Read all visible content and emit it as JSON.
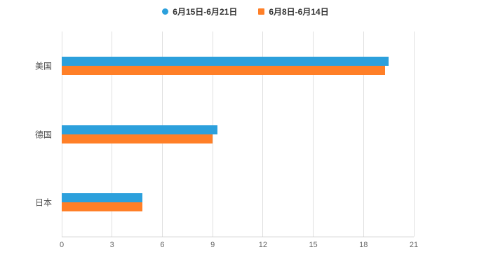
{
  "background": "#ffffff",
  "legend": {
    "items": [
      {
        "label": "6月15日-6月21日",
        "color": "#2CA0DC",
        "marker": "circle"
      },
      {
        "label": "6月8日-6月14日",
        "color": "#FF7F27",
        "marker": "square"
      }
    ]
  },
  "chart_data": {
    "type": "bar",
    "orientation": "horizontal",
    "title": "",
    "xlabel": "",
    "ylabel": "",
    "categories": [
      "美国",
      "德国",
      "日本"
    ],
    "series": [
      {
        "name": "6月15日-6月21日",
        "color": "#2CA0DC",
        "values": [
          19.5,
          9.3,
          4.8
        ]
      },
      {
        "name": "6月8日-6月14日",
        "color": "#FF7F27",
        "values": [
          19.3,
          9.0,
          4.8
        ]
      }
    ],
    "xlim": [
      0,
      21
    ],
    "xticks": [
      0,
      3,
      6,
      9,
      12,
      15,
      18,
      21
    ],
    "grid": true,
    "legend_position": "top",
    "axis_color": "#cccccc",
    "gridline_color": "#e0e0e0",
    "tick_label_color": "#666666",
    "category_label_color": "#4d4d4d"
  }
}
